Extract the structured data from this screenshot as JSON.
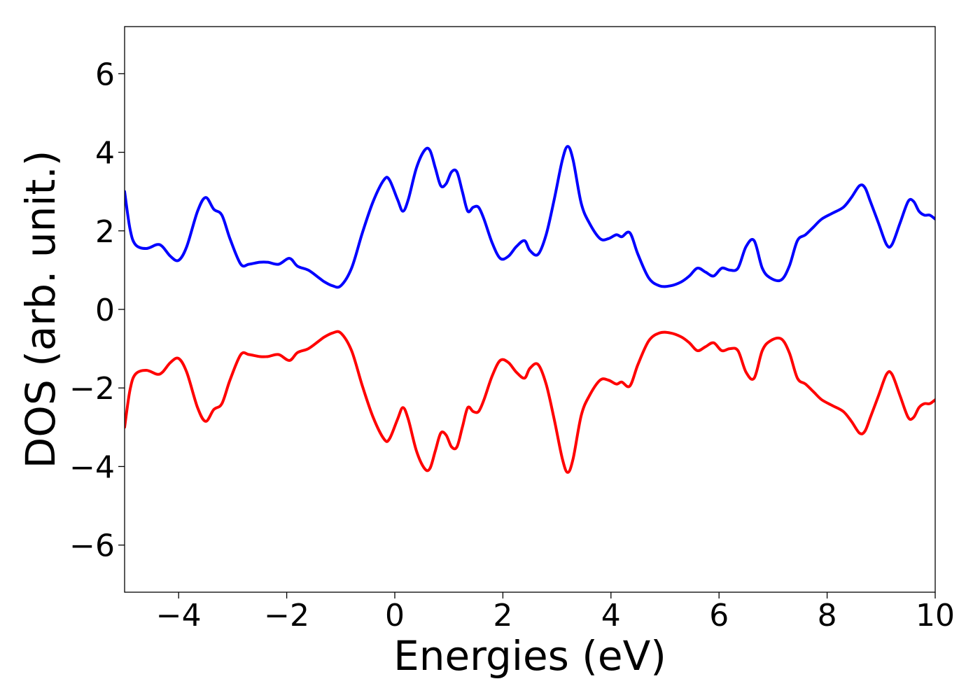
{
  "chart_data": {
    "type": "line",
    "title": "",
    "xlabel": "Energies (eV)",
    "ylabel": "DOS (arb. unit.)",
    "xlim": [
      -5,
      10
    ],
    "ylim": [
      -7.2,
      7.2
    ],
    "xticks": [
      -4,
      -2,
      0,
      2,
      4,
      6,
      8,
      10
    ],
    "yticks": [
      -6,
      -4,
      -2,
      0,
      2,
      4,
      6
    ],
    "xtick_labels": [
      "−4",
      "−2",
      "0",
      "2",
      "4",
      "6",
      "8",
      "10"
    ],
    "ytick_labels": [
      "−6",
      "−4",
      "−2",
      "0",
      "2",
      "4",
      "6"
    ],
    "grid": false,
    "legend": "none",
    "series": [
      {
        "color": "#0000ff",
        "x": [
          -5.0,
          -4.9,
          -4.8,
          -4.6,
          -4.4,
          -4.3,
          -4.15,
          -4.0,
          -3.85,
          -3.65,
          -3.5,
          -3.35,
          -3.2,
          -3.05,
          -2.85,
          -2.7,
          -2.5,
          -2.35,
          -2.15,
          -1.95,
          -1.8,
          -1.6,
          -1.4,
          -1.3,
          -1.15,
          -1.0,
          -0.8,
          -0.6,
          -0.4,
          -0.2,
          -0.1,
          0.05,
          0.15,
          0.25,
          0.4,
          0.55,
          0.65,
          0.75,
          0.85,
          0.95,
          1.05,
          1.15,
          1.25,
          1.35,
          1.45,
          1.55,
          1.65,
          1.8,
          1.95,
          2.1,
          2.25,
          2.4,
          2.5,
          2.65,
          2.8,
          2.95,
          3.1,
          3.2,
          3.3,
          3.45,
          3.6,
          3.8,
          3.95,
          4.1,
          4.2,
          4.35,
          4.5,
          4.7,
          4.9,
          5.1,
          5.3,
          5.45,
          5.6,
          5.75,
          5.9,
          6.05,
          6.2,
          6.35,
          6.5,
          6.65,
          6.8,
          6.95,
          7.15,
          7.3,
          7.45,
          7.6,
          7.75,
          7.9,
          8.1,
          8.3,
          8.45,
          8.6,
          8.7,
          8.8,
          8.95,
          9.1,
          9.2,
          9.35,
          9.5,
          9.6,
          9.7,
          9.8,
          9.9,
          10.0
        ],
        "y": [
          3.0,
          2.05,
          1.65,
          1.55,
          1.65,
          1.6,
          1.35,
          1.25,
          1.6,
          2.5,
          2.85,
          2.55,
          2.4,
          1.8,
          1.15,
          1.15,
          1.2,
          1.2,
          1.15,
          1.3,
          1.1,
          1.0,
          0.8,
          0.7,
          0.6,
          0.6,
          1.05,
          1.95,
          2.75,
          3.3,
          3.3,
          2.8,
          2.5,
          2.8,
          3.6,
          4.05,
          4.05,
          3.6,
          3.15,
          3.2,
          3.5,
          3.5,
          3.0,
          2.5,
          2.6,
          2.6,
          2.3,
          1.7,
          1.3,
          1.35,
          1.6,
          1.75,
          1.5,
          1.4,
          1.9,
          2.8,
          3.8,
          4.15,
          3.8,
          2.7,
          2.2,
          1.8,
          1.8,
          1.9,
          1.85,
          1.95,
          1.4,
          0.8,
          0.6,
          0.6,
          0.7,
          0.85,
          1.05,
          0.95,
          0.85,
          1.05,
          1.0,
          1.05,
          1.6,
          1.75,
          1.05,
          0.8,
          0.75,
          1.1,
          1.75,
          1.9,
          2.1,
          2.3,
          2.45,
          2.6,
          2.85,
          3.15,
          3.1,
          2.75,
          2.2,
          1.65,
          1.65,
          2.2,
          2.75,
          2.75,
          2.5,
          2.4,
          2.4,
          2.3
        ]
      },
      {
        "color": "#ff0000",
        "x": [
          -5.0,
          -4.9,
          -4.8,
          -4.6,
          -4.4,
          -4.3,
          -4.15,
          -4.0,
          -3.85,
          -3.65,
          -3.5,
          -3.35,
          -3.2,
          -3.05,
          -2.85,
          -2.7,
          -2.5,
          -2.35,
          -2.15,
          -1.95,
          -1.8,
          -1.6,
          -1.4,
          -1.3,
          -1.15,
          -1.0,
          -0.8,
          -0.6,
          -0.4,
          -0.2,
          -0.1,
          0.05,
          0.15,
          0.25,
          0.4,
          0.55,
          0.65,
          0.75,
          0.85,
          0.95,
          1.05,
          1.15,
          1.25,
          1.35,
          1.45,
          1.55,
          1.65,
          1.8,
          1.95,
          2.1,
          2.25,
          2.4,
          2.5,
          2.65,
          2.8,
          2.95,
          3.1,
          3.2,
          3.3,
          3.45,
          3.6,
          3.8,
          3.95,
          4.1,
          4.2,
          4.35,
          4.5,
          4.7,
          4.9,
          5.1,
          5.3,
          5.45,
          5.6,
          5.75,
          5.9,
          6.05,
          6.2,
          6.35,
          6.5,
          6.65,
          6.8,
          6.95,
          7.15,
          7.3,
          7.45,
          7.6,
          7.75,
          7.9,
          8.1,
          8.3,
          8.45,
          8.6,
          8.7,
          8.8,
          8.95,
          9.1,
          9.2,
          9.35,
          9.5,
          9.6,
          9.7,
          9.8,
          9.9,
          10.0
        ],
        "y": [
          -3.0,
          -2.05,
          -1.65,
          -1.55,
          -1.65,
          -1.6,
          -1.35,
          -1.25,
          -1.6,
          -2.5,
          -2.85,
          -2.55,
          -2.4,
          -1.8,
          -1.15,
          -1.15,
          -1.2,
          -1.2,
          -1.15,
          -1.3,
          -1.1,
          -1.0,
          -0.8,
          -0.7,
          -0.6,
          -0.6,
          -1.05,
          -1.95,
          -2.75,
          -3.3,
          -3.3,
          -2.8,
          -2.5,
          -2.8,
          -3.6,
          -4.05,
          -4.05,
          -3.6,
          -3.15,
          -3.2,
          -3.5,
          -3.5,
          -3.0,
          -2.5,
          -2.6,
          -2.6,
          -2.3,
          -1.7,
          -1.3,
          -1.35,
          -1.6,
          -1.75,
          -1.5,
          -1.4,
          -1.9,
          -2.8,
          -3.8,
          -4.15,
          -3.8,
          -2.7,
          -2.2,
          -1.8,
          -1.8,
          -1.9,
          -1.85,
          -1.95,
          -1.4,
          -0.8,
          -0.6,
          -0.6,
          -0.7,
          -0.85,
          -1.05,
          -0.95,
          -0.85,
          -1.05,
          -1.0,
          -1.05,
          -1.6,
          -1.75,
          -1.05,
          -0.8,
          -0.75,
          -1.1,
          -1.75,
          -1.9,
          -2.1,
          -2.3,
          -2.45,
          -2.6,
          -2.85,
          -3.15,
          -3.1,
          -2.75,
          -2.2,
          -1.65,
          -1.65,
          -2.2,
          -2.75,
          -2.75,
          -2.5,
          -2.4,
          -2.4,
          -2.3
        ]
      }
    ]
  }
}
